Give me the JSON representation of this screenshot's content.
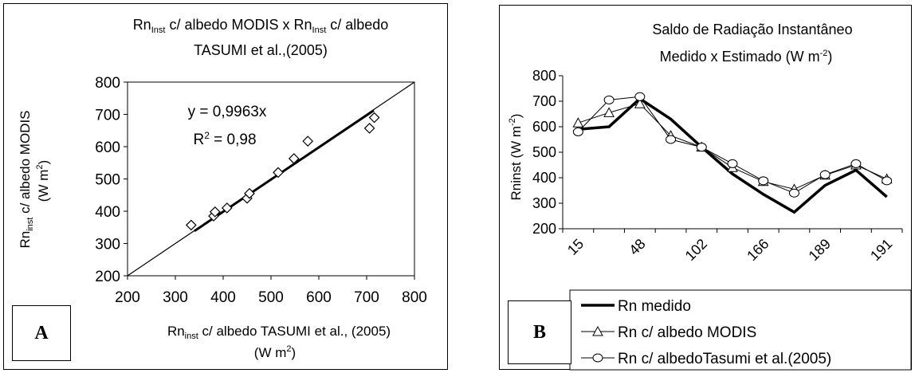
{
  "chart_data": [
    {
      "type": "scatter",
      "panel_label": "A",
      "title_line1_parts": [
        "Rn",
        "Inst",
        " c/ albedo MODIS x Rn",
        "Inst",
        " c/ albedo"
      ],
      "title_line2": "TASUMI et al.,(2005)",
      "xlabel_line1_parts": [
        "Rn",
        "inst",
        " c/ albedo TASUMI et al., (2005)"
      ],
      "xlabel_line2_parts": [
        "(W m",
        "2",
        ")"
      ],
      "ylabel_line1_parts": [
        "Rn",
        "inst",
        " c/ albedo MODIS"
      ],
      "ylabel_line2_parts": [
        "(W m",
        "2",
        ")"
      ],
      "xlim": [
        200,
        800
      ],
      "ylim": [
        200,
        800
      ],
      "xticks": [
        "200",
        "300",
        "400",
        "500",
        "600",
        "700",
        "800"
      ],
      "yticks": [
        "200",
        "300",
        "400",
        "500",
        "600",
        "700",
        "800"
      ],
      "points": [
        {
          "x": 333,
          "y": 357
        },
        {
          "x": 380,
          "y": 385
        },
        {
          "x": 383,
          "y": 398
        },
        {
          "x": 408,
          "y": 410
        },
        {
          "x": 450,
          "y": 440
        },
        {
          "x": 455,
          "y": 455
        },
        {
          "x": 515,
          "y": 520
        },
        {
          "x": 548,
          "y": 563
        },
        {
          "x": 577,
          "y": 617
        },
        {
          "x": 706,
          "y": 657
        },
        {
          "x": 716,
          "y": 690
        }
      ],
      "identity_line": [
        [
          200,
          200
        ],
        [
          800,
          800
        ]
      ],
      "trendline": {
        "slope": 0.9963,
        "x_range": [
          340,
          715
        ]
      },
      "equation": "y = 0,9963x",
      "r2_parts": [
        "R",
        "2",
        " = 0,98"
      ],
      "grid": false,
      "legend": "none"
    },
    {
      "type": "line",
      "panel_label": "B",
      "title_line1": "Saldo de Radiação Instantâneo",
      "title_line2_parts": [
        "Medido x Estimado (W m",
        "-2",
        ")"
      ],
      "ylabel_parts": [
        "Rninst (W m",
        "-2",
        ")"
      ],
      "ylim": [
        200,
        800
      ],
      "yticks": [
        "200",
        "300",
        "400",
        "500",
        "600",
        "700",
        "800"
      ],
      "xtick_labels": [
        "15",
        "48",
        "102",
        "166",
        "189",
        "191"
      ],
      "n_points": 11,
      "series": [
        {
          "name": "Rn medido",
          "marker": "none",
          "values": [
            590,
            600,
            710,
            630,
            520,
            415,
            335,
            265,
            370,
            430,
            325
          ]
        },
        {
          "name": "Rn c/ albedo MODIS",
          "marker": "triangle",
          "values": [
            615,
            655,
            690,
            565,
            520,
            440,
            385,
            355,
            410,
            450,
            395
          ]
        },
        {
          "name": "Rn c/ albedoTasumi et al.(2005)",
          "marker": "circle",
          "values": [
            580,
            705,
            718,
            550,
            520,
            455,
            388,
            340,
            412,
            455,
            388
          ]
        }
      ],
      "grid": false,
      "legend": "bottom"
    }
  ]
}
